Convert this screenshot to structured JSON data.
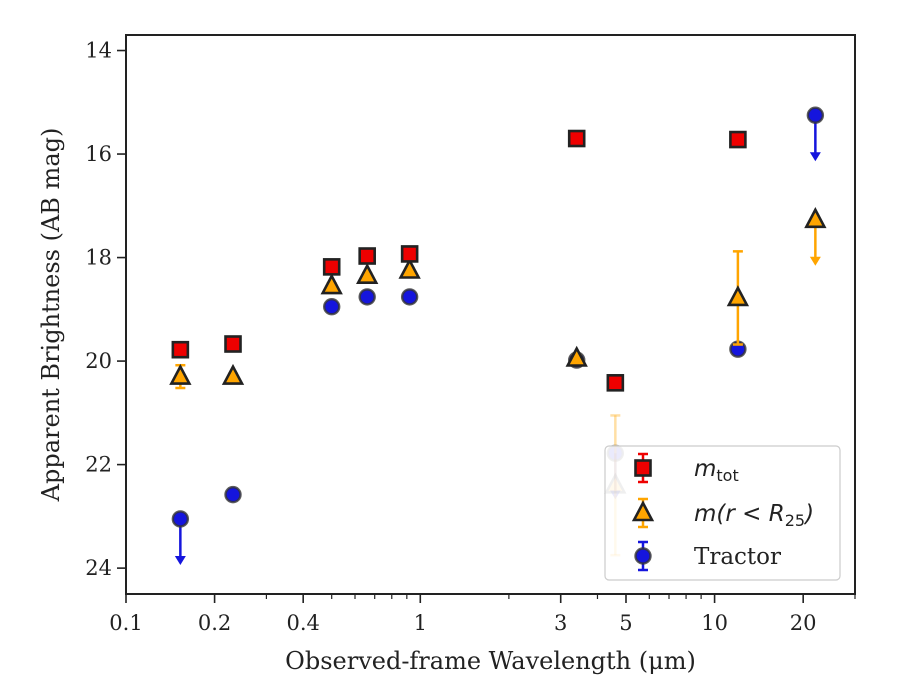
{
  "chart_data": {
    "type": "scatter",
    "xlabel": "Observed-frame Wavelength (μm)",
    "ylabel": "Apparent Brightness (AB mag)",
    "xscale": "log",
    "xlim": [
      0.1,
      30
    ],
    "ylim": [
      24.5,
      13.7
    ],
    "y_inverted": true,
    "xticks": [
      0.1,
      0.2,
      0.4,
      1,
      3,
      5,
      10,
      20
    ],
    "xtick_labels": [
      "0.1",
      "0.2",
      "0.4",
      "1",
      "3",
      "5",
      "10",
      "20"
    ],
    "yticks": [
      14,
      16,
      18,
      20,
      22,
      24
    ],
    "ytick_labels": [
      "14",
      "16",
      "18",
      "20",
      "22",
      "24"
    ],
    "legend_position": "lower-right",
    "grid": false,
    "series": [
      {
        "name": "m_tot",
        "marker": "square",
        "color": "#ee0000",
        "edge_color": "#222222",
        "points": [
          {
            "x": 0.153,
            "y": 19.78,
            "err": 0.05
          },
          {
            "x": 0.231,
            "y": 19.67,
            "err": 0.05
          },
          {
            "x": 0.5,
            "y": 18.18,
            "err": 0.04
          },
          {
            "x": 0.66,
            "y": 17.97,
            "err": 0.04
          },
          {
            "x": 0.92,
            "y": 17.93,
            "err": 0.04
          },
          {
            "x": 3.4,
            "y": 15.7,
            "err": 0.03
          },
          {
            "x": 4.6,
            "y": 20.42,
            "err": 0.05
          },
          {
            "x": 12.0,
            "y": 15.72,
            "err": 0.03
          }
        ]
      },
      {
        "name": "m(r < R25)",
        "marker": "triangle",
        "color": "#ffa500",
        "edge_color": "#222222",
        "points": [
          {
            "x": 0.153,
            "y": 20.3,
            "err": 0.22
          },
          {
            "x": 0.231,
            "y": 20.3,
            "err": 0.05
          },
          {
            "x": 0.5,
            "y": 18.55,
            "err": 0.05
          },
          {
            "x": 0.66,
            "y": 18.35,
            "err": 0.05
          },
          {
            "x": 0.92,
            "y": 18.25,
            "err": 0.05
          },
          {
            "x": 3.4,
            "y": 19.95,
            "err": 0.05
          },
          {
            "x": 4.6,
            "y": 22.4,
            "err": 1.35,
            "alpha": 0.35
          },
          {
            "x": 12.0,
            "y": 18.78,
            "err": 0.9
          },
          {
            "x": 22.0,
            "y": 17.27,
            "upper_limit": true
          }
        ]
      },
      {
        "name": "Tractor",
        "marker": "circle",
        "color": "#1515dd",
        "edge_color": "#333333",
        "points": [
          {
            "x": 0.153,
            "y": 23.05,
            "upper_limit": true
          },
          {
            "x": 0.231,
            "y": 22.58,
            "err": 0.08
          },
          {
            "x": 0.5,
            "y": 18.95,
            "err": 0.04
          },
          {
            "x": 0.66,
            "y": 18.76,
            "err": 0.04
          },
          {
            "x": 0.92,
            "y": 18.76,
            "err": 0.04
          },
          {
            "x": 3.4,
            "y": 19.98,
            "err": 0.05
          },
          {
            "x": 4.6,
            "y": 21.78,
            "upper_limit": true,
            "alpha": 0.45
          },
          {
            "x": 12.0,
            "y": 19.77,
            "err": 0.06
          },
          {
            "x": 22.0,
            "y": 15.25,
            "upper_limit": true
          }
        ]
      }
    ]
  }
}
